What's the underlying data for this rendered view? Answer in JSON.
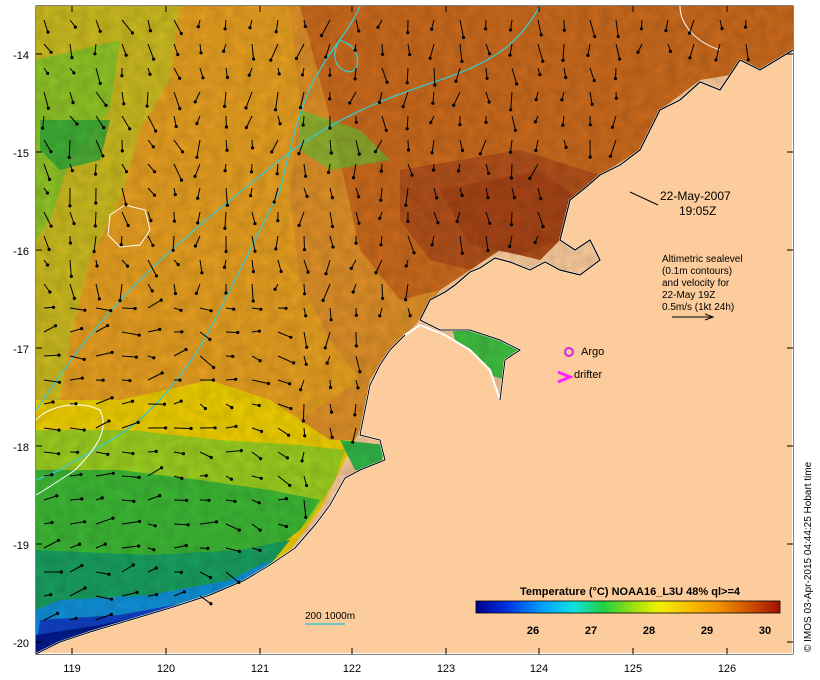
{
  "map": {
    "x_ticks": [
      "119",
      "120",
      "121",
      "122",
      "123",
      "124",
      "125",
      "126"
    ],
    "y_ticks": [
      "-14",
      "-15",
      "-16",
      "-17",
      "-18",
      "-19",
      "-20"
    ],
    "date_line1": "22-May-2007",
    "date_line2": "19:05Z",
    "altimetry_line1": "Altimetric sealevel",
    "altimetry_line2": "(0.1m contours)",
    "altimetry_line3": "and velocity for",
    "altimetry_line4": "22-May 19Z",
    "altimetry_line5": "0.5m/s (1kt 24h)",
    "argo_label": "Argo",
    "drifter_label": "drifter",
    "depth_label": "200  1000m",
    "colorbar_title": "Temperature (°C) NOAA16_L3U 48% ql>=4",
    "colorbar_ticks": [
      "26",
      "27",
      "28",
      "29",
      "30"
    ],
    "credit": "© IMOS 03-Apr-2015 04:44:25 Hobart time",
    "colors": {
      "land": "#fccc9c",
      "argo": "#dd22dd",
      "drifter": "#ff22ff",
      "contour_200_1000": "#3cc8c8"
    }
  }
}
